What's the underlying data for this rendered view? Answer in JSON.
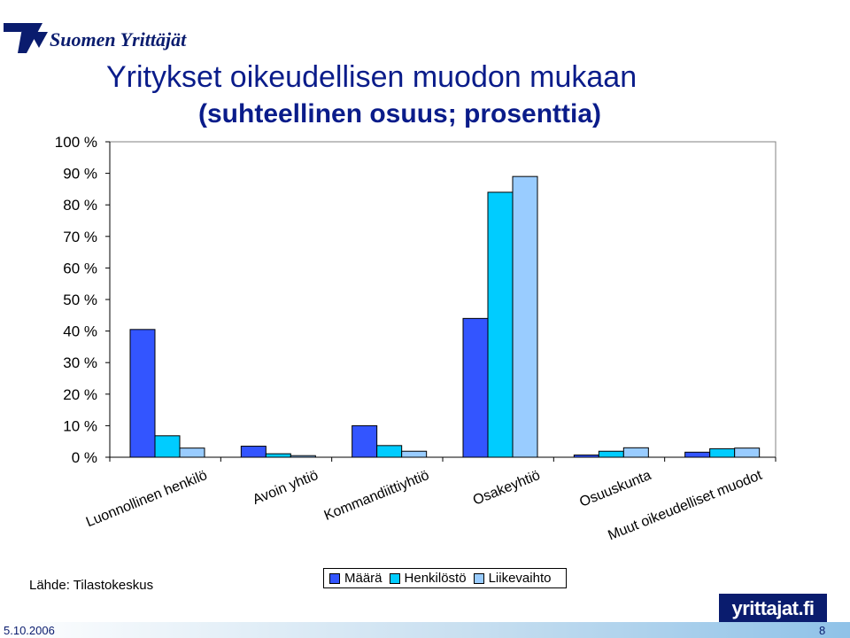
{
  "header": {
    "logo_text": "Suomen Yrittäjät"
  },
  "chart_data": {
    "type": "bar",
    "title": "Yritykset oikeudellisen muodon mukaan",
    "subtitle": "(suhteellinen osuus; prosenttia)",
    "categories": [
      "Luonnollinen henkilö",
      "Avoin yhtiö",
      "Kommandiittiyhtiö",
      "Osakeyhtiö",
      "Osuuskunta",
      "Muut oikeudelliset muodot"
    ],
    "series": [
      {
        "name": "Määrä",
        "color": "#3355ff",
        "values": [
          40.5,
          3.5,
          10,
          44,
          0.7,
          1.6
        ]
      },
      {
        "name": "Henkilöstö",
        "color": "#00ccff",
        "values": [
          6.8,
          1.1,
          3.7,
          84,
          1.9,
          2.7
        ]
      },
      {
        "name": "Liikevaihto",
        "color": "#99ccff",
        "values": [
          2.9,
          0.5,
          1.9,
          89,
          3,
          2.9
        ]
      }
    ],
    "yticks": [
      "0 %",
      "10 %",
      "20 %",
      "30 %",
      "40 %",
      "50 %",
      "60 %",
      "70 %",
      "80 %",
      "90 %",
      "100 %"
    ],
    "ylim": [
      0,
      100
    ],
    "grid": false,
    "legend_position": "bottom"
  },
  "footer": {
    "source": "Lähde: Tilastokeskus",
    "brand": "yrittajat.fi",
    "date": "5.10.2006",
    "page": "8"
  }
}
